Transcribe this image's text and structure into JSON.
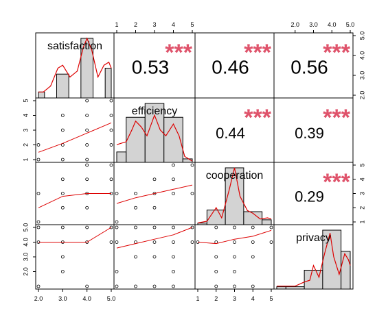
{
  "chart_data": {
    "type": "scatter-matrix",
    "variables": [
      "satisfaction",
      "efficiency",
      "cooperation",
      "privacy"
    ],
    "axis_ticks": {
      "satisfaction": [
        "2.0",
        "3.0",
        "4.0",
        "5.0"
      ],
      "efficiency": [
        "1",
        "2",
        "3",
        "4",
        "5"
      ],
      "cooperation": [
        "1",
        "2",
        "3",
        "4",
        "5"
      ],
      "privacy": [
        "2.0",
        "3.0",
        "4.0",
        "5.0"
      ]
    },
    "ranges": {
      "satisfaction": [
        2,
        5
      ],
      "efficiency": [
        1,
        5
      ],
      "cooperation": [
        1,
        5
      ],
      "privacy": [
        1,
        5
      ]
    },
    "histograms": {
      "satisfaction": {
        "bins": [
          [
            2.0,
            2.25
          ],
          [
            2.75,
            3.25
          ],
          [
            3.75,
            4.25
          ],
          [
            4.75,
            5.0
          ]
        ],
        "counts": [
          1,
          4,
          10,
          5
        ],
        "density": [
          [
            2.0,
            0.1
          ],
          [
            2.2,
            0.1
          ],
          [
            2.5,
            0.2
          ],
          [
            2.8,
            0.5
          ],
          [
            3.0,
            0.55
          ],
          [
            3.3,
            0.35
          ],
          [
            3.6,
            0.45
          ],
          [
            3.85,
            0.85
          ],
          [
            4.0,
            1.0
          ],
          [
            4.2,
            0.8
          ],
          [
            4.45,
            0.35
          ],
          [
            4.7,
            0.55
          ],
          [
            4.9,
            0.6
          ],
          [
            5.0,
            0.5
          ]
        ]
      },
      "efficiency": {
        "bins": [
          [
            1,
            1.5
          ],
          [
            1.5,
            2.5
          ],
          [
            2.5,
            3.5
          ],
          [
            3.5,
            4.5
          ],
          [
            4.5,
            5
          ]
        ],
        "counts": [
          3,
          13,
          17,
          13,
          1
        ],
        "density": [
          [
            1,
            0.3
          ],
          [
            1.5,
            0.35
          ],
          [
            1.8,
            0.55
          ],
          [
            2.0,
            0.7
          ],
          [
            2.3,
            0.6
          ],
          [
            2.6,
            0.45
          ],
          [
            3.0,
            0.8
          ],
          [
            3.3,
            0.55
          ],
          [
            3.6,
            0.45
          ],
          [
            4.0,
            0.65
          ],
          [
            4.3,
            0.45
          ],
          [
            4.6,
            0.1
          ],
          [
            5.0,
            0.02
          ]
        ]
      },
      "cooperation": {
        "bins": [
          [
            1,
            1.5
          ],
          [
            1.5,
            2.5
          ],
          [
            2.5,
            3.5
          ],
          [
            3.5,
            4.5
          ],
          [
            4.5,
            5
          ]
        ],
        "counts": [
          1,
          9,
          35,
          8,
          3
        ],
        "density": [
          [
            1,
            0.03
          ],
          [
            1.5,
            0.06
          ],
          [
            2.0,
            0.3
          ],
          [
            2.3,
            0.12
          ],
          [
            2.7,
            0.6
          ],
          [
            3.0,
            1.0
          ],
          [
            3.3,
            0.5
          ],
          [
            3.7,
            0.25
          ],
          [
            4.0,
            0.2
          ],
          [
            4.4,
            0.1
          ],
          [
            4.8,
            0.12
          ],
          [
            5.0,
            0.1
          ]
        ]
      },
      "privacy": {
        "bins": [
          [
            1,
            1.5
          ],
          [
            1.5,
            2.5
          ],
          [
            2.5,
            3.5
          ],
          [
            3.5,
            4.5
          ],
          [
            4.5,
            5
          ]
        ],
        "counts": [
          1,
          1,
          8,
          25,
          16
        ],
        "density": [
          [
            1,
            0.05
          ],
          [
            1.5,
            0.05
          ],
          [
            2.0,
            0.05
          ],
          [
            2.5,
            0.12
          ],
          [
            2.8,
            0.15
          ],
          [
            3.0,
            0.4
          ],
          [
            3.3,
            0.2
          ],
          [
            3.6,
            0.6
          ],
          [
            3.9,
            0.95
          ],
          [
            4.1,
            0.55
          ],
          [
            4.4,
            0.25
          ],
          [
            4.7,
            0.6
          ],
          [
            4.9,
            0.5
          ],
          [
            5.0,
            0.4
          ]
        ]
      }
    },
    "correlations": [
      {
        "row": 0,
        "col": 1,
        "value": "0.53",
        "stars": "***"
      },
      {
        "row": 0,
        "col": 2,
        "value": "0.46",
        "stars": "***"
      },
      {
        "row": 0,
        "col": 3,
        "value": "0.56",
        "stars": "***"
      },
      {
        "row": 1,
        "col": 2,
        "value": "0.44",
        "stars": "***"
      },
      {
        "row": 1,
        "col": 3,
        "value": "0.39",
        "stars": "***"
      },
      {
        "row": 2,
        "col": 3,
        "value": "0.29",
        "stars": "***"
      }
    ],
    "scatter_points": [
      {
        "row": 1,
        "col": 0,
        "points": [
          [
            2,
            1
          ],
          [
            2,
            2
          ],
          [
            3,
            1
          ],
          [
            3,
            2
          ],
          [
            3,
            3
          ],
          [
            3,
            4
          ],
          [
            4,
            1
          ],
          [
            4,
            2
          ],
          [
            4,
            3
          ],
          [
            4,
            4
          ],
          [
            4,
            5
          ],
          [
            5,
            2
          ],
          [
            5,
            3
          ],
          [
            5,
            4
          ],
          [
            5,
            5
          ]
        ],
        "fit": [
          [
            2,
            1.5
          ],
          [
            3,
            2.1
          ],
          [
            4,
            2.8
          ],
          [
            5,
            3.5
          ]
        ]
      },
      {
        "row": 2,
        "col": 0,
        "points": [
          [
            2,
            1
          ],
          [
            2,
            3
          ],
          [
            3,
            2
          ],
          [
            3,
            3
          ],
          [
            3,
            4
          ],
          [
            4,
            2
          ],
          [
            4,
            3
          ],
          [
            4,
            4
          ],
          [
            4,
            5
          ],
          [
            5,
            3
          ],
          [
            5,
            4
          ],
          [
            5,
            5
          ]
        ],
        "fit": [
          [
            2,
            2.0
          ],
          [
            3,
            2.8
          ],
          [
            4,
            3.0
          ],
          [
            5,
            3.0
          ]
        ]
      },
      {
        "row": 3,
        "col": 0,
        "points": [
          [
            2,
            1
          ],
          [
            2,
            4
          ],
          [
            2,
            5
          ],
          [
            3,
            2
          ],
          [
            3,
            3
          ],
          [
            3,
            4
          ],
          [
            3,
            5
          ],
          [
            4,
            1
          ],
          [
            4,
            4
          ],
          [
            4,
            5
          ],
          [
            5,
            4
          ],
          [
            5,
            5
          ]
        ],
        "fit": [
          [
            2,
            4.0
          ],
          [
            3,
            4.0
          ],
          [
            4,
            4.0
          ],
          [
            5,
            5.0
          ]
        ]
      },
      {
        "row": 2,
        "col": 1,
        "points": [
          [
            1,
            1
          ],
          [
            1,
            3
          ],
          [
            2,
            2
          ],
          [
            2,
            3
          ],
          [
            3,
            2
          ],
          [
            3,
            3
          ],
          [
            3,
            4
          ],
          [
            4,
            3
          ],
          [
            4,
            4
          ],
          [
            4,
            5
          ],
          [
            5,
            3
          ],
          [
            5,
            5
          ]
        ],
        "fit": [
          [
            1,
            2.3
          ],
          [
            2,
            2.7
          ],
          [
            3,
            3.0
          ],
          [
            4,
            3.3
          ],
          [
            5,
            3.6
          ]
        ]
      },
      {
        "row": 3,
        "col": 1,
        "points": [
          [
            1,
            1
          ],
          [
            1,
            2
          ],
          [
            1,
            4
          ],
          [
            1,
            5
          ],
          [
            2,
            1
          ],
          [
            2,
            3
          ],
          [
            2,
            4
          ],
          [
            2,
            5
          ],
          [
            3,
            1
          ],
          [
            3,
            3
          ],
          [
            3,
            4
          ],
          [
            3,
            5
          ],
          [
            4,
            1
          ],
          [
            4,
            2
          ],
          [
            4,
            3
          ],
          [
            4,
            4
          ],
          [
            4,
            5
          ],
          [
            5,
            4
          ],
          [
            5,
            5
          ]
        ],
        "fit": [
          [
            1,
            3.6
          ],
          [
            2,
            3.9
          ],
          [
            3,
            4.2
          ],
          [
            4,
            4.5
          ],
          [
            5,
            5.0
          ]
        ]
      },
      {
        "row": 3,
        "col": 2,
        "points": [
          [
            1,
            4
          ],
          [
            2,
            1
          ],
          [
            2,
            2
          ],
          [
            2,
            3
          ],
          [
            2,
            4
          ],
          [
            2,
            5
          ],
          [
            3,
            1
          ],
          [
            3,
            2
          ],
          [
            3,
            3
          ],
          [
            3,
            4
          ],
          [
            3,
            5
          ],
          [
            4,
            1
          ],
          [
            4,
            3
          ],
          [
            4,
            4
          ],
          [
            4,
            5
          ],
          [
            5,
            4
          ],
          [
            5,
            5
          ]
        ],
        "fit": [
          [
            1,
            4.0
          ],
          [
            2,
            3.9
          ],
          [
            3,
            4.2
          ],
          [
            4,
            4.4
          ],
          [
            5,
            4.8
          ]
        ]
      }
    ]
  }
}
